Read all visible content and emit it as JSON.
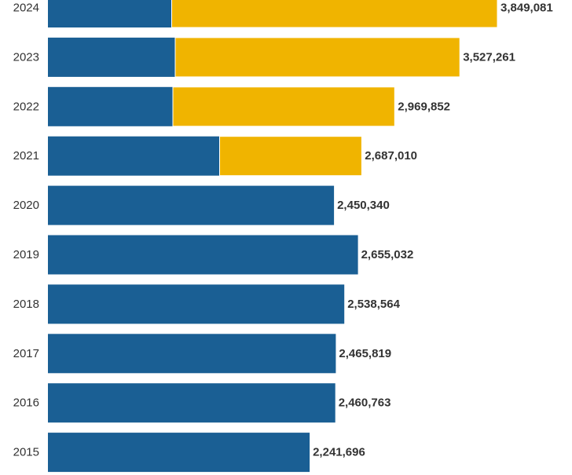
{
  "colors": {
    "blue": "#1a5f94",
    "gold": "#f0b400"
  },
  "chart_data": {
    "type": "bar",
    "orientation": "horizontal",
    "stacked": true,
    "categories": [
      "2024",
      "2023",
      "2022",
      "2021",
      "2020",
      "2019",
      "2018",
      "2017",
      "2016",
      "2015"
    ],
    "series": [
      {
        "name": "blue",
        "values": [
          1060000,
          1090000,
          1070000,
          1470000,
          2450340,
          2655032,
          2538564,
          2465819,
          2460763,
          2241696
        ]
      },
      {
        "name": "gold",
        "values": [
          2789081,
          2437261,
          1899852,
          1217010,
          0,
          0,
          0,
          0,
          0,
          0
        ]
      }
    ],
    "totals": [
      3849081,
      3527261,
      2969852,
      2687010,
      2450340,
      2655032,
      2538564,
      2465819,
      2460763,
      2241696
    ],
    "total_labels": [
      "3,849,081",
      "3,527,261",
      "2,969,852",
      "2,687,010",
      "2,450,340",
      "2,655,032",
      "2,538,564",
      "2,465,819",
      "2,460,763",
      "2,241,696"
    ],
    "xlim": [
      0,
      3900000
    ]
  }
}
